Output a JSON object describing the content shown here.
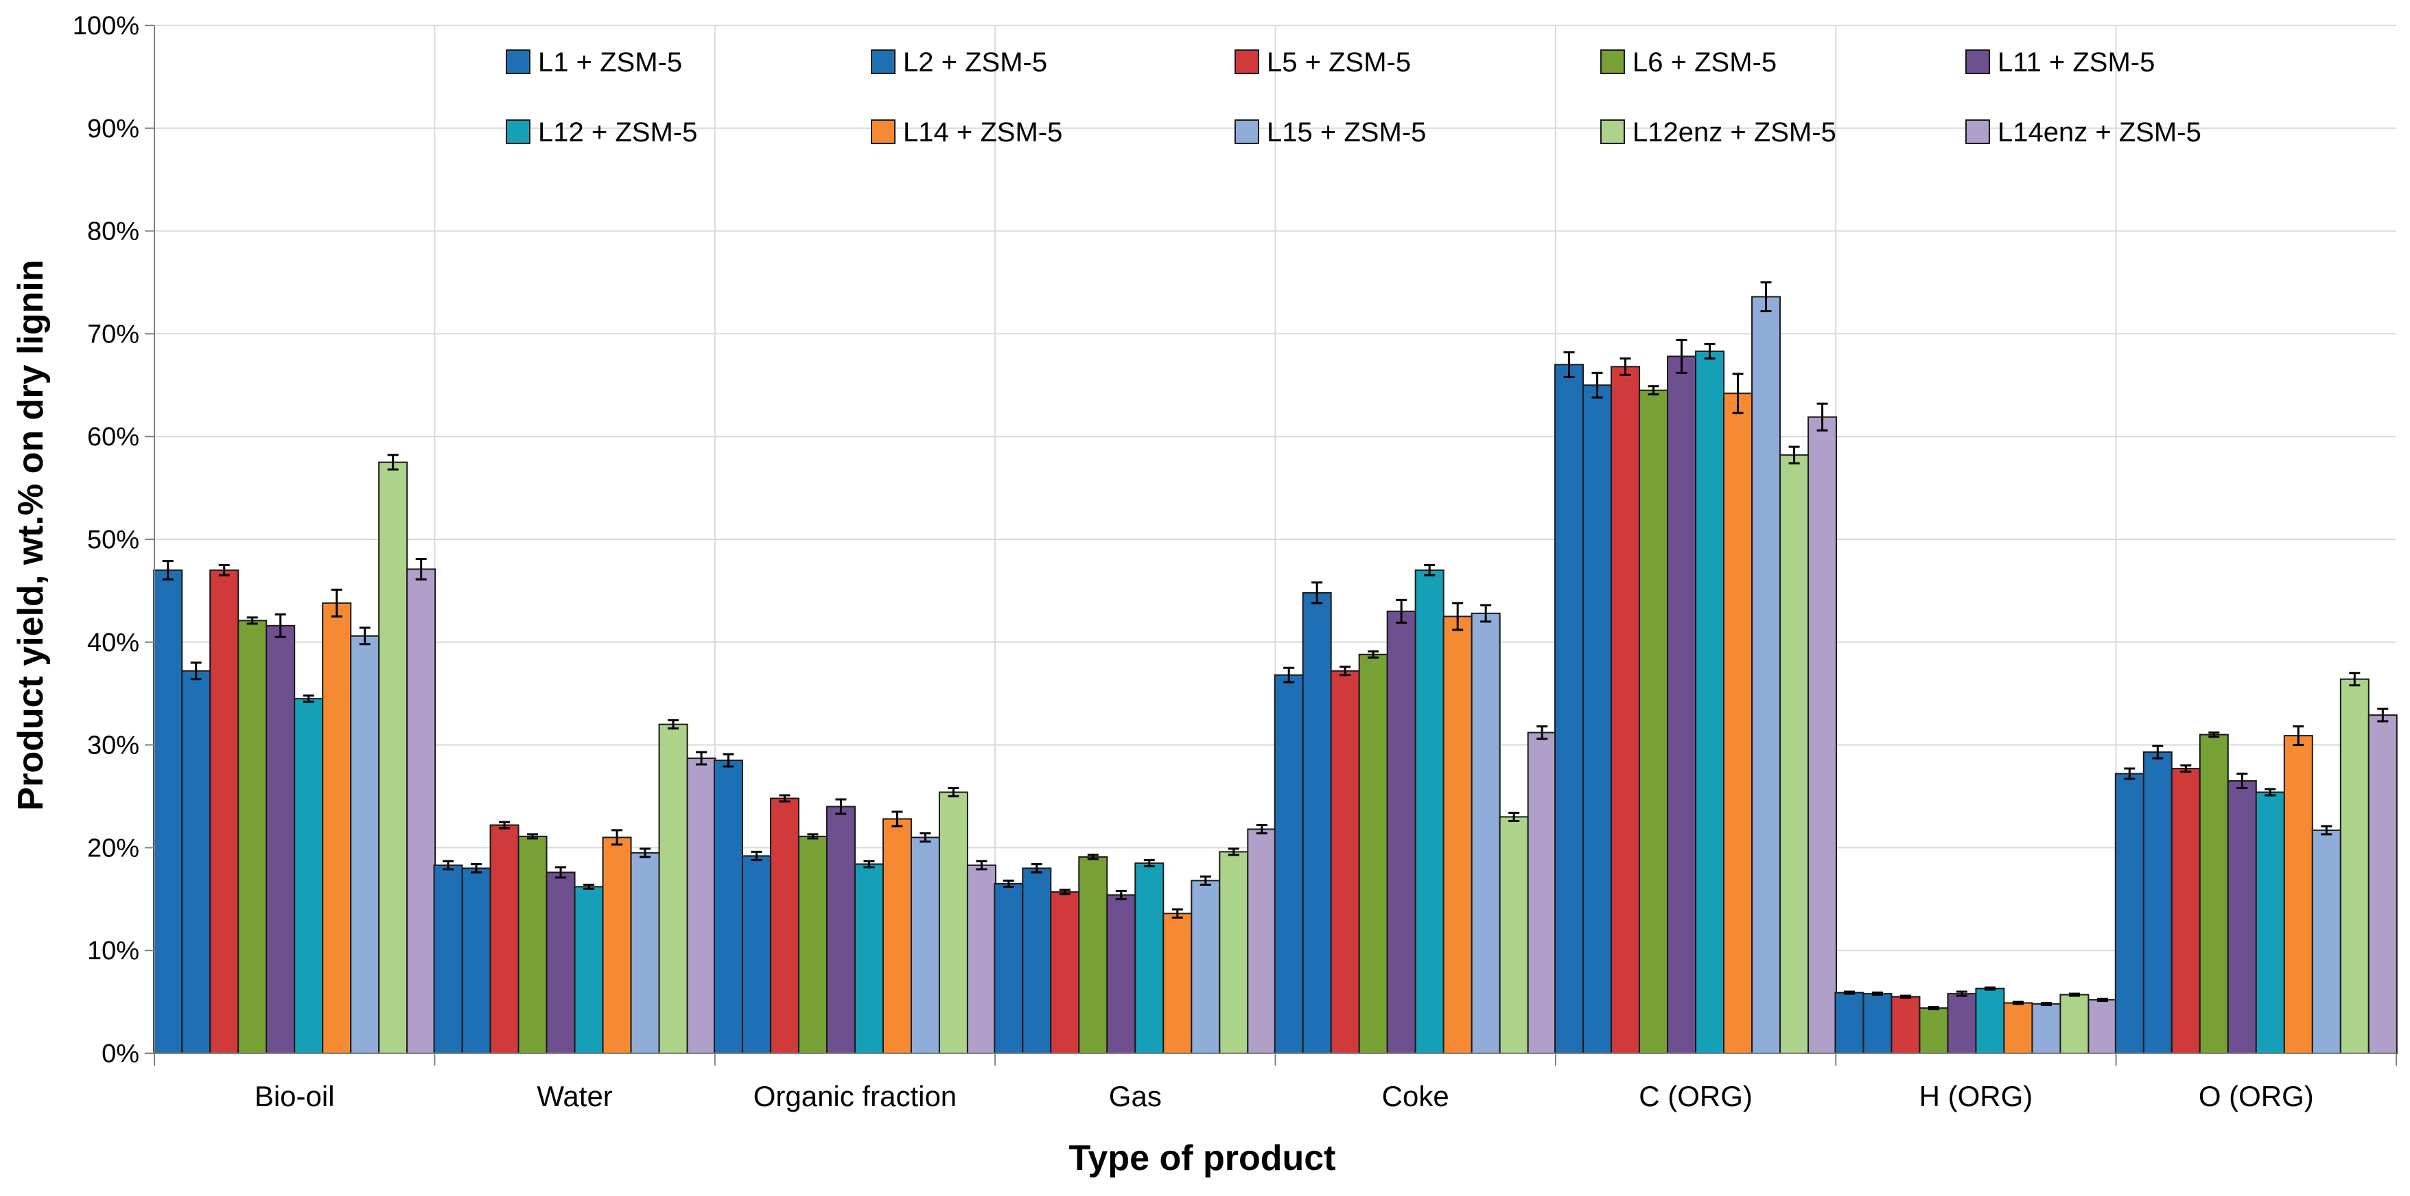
{
  "chart_data": {
    "type": "bar",
    "title": "",
    "xlabel": "Type of product",
    "ylabel": "Product yield, wt.% on dry lignin",
    "ylim": [
      0,
      100
    ],
    "yticks": [
      "0%",
      "10%",
      "20%",
      "30%",
      "40%",
      "50%",
      "60%",
      "70%",
      "80%",
      "90%",
      "100%"
    ],
    "grid": true,
    "legend_position": "top",
    "categories": [
      "Bio-oil",
      "Water",
      "Organic fraction",
      "Gas",
      "Coke",
      "C (ORG)",
      "H (ORG)",
      "O (ORG)"
    ],
    "series": [
      {
        "name": "L1 + ZSM-5",
        "color": "#1F6FB4",
        "values": [
          47.0,
          18.3,
          28.5,
          16.5,
          36.8,
          67.0,
          5.9,
          27.2
        ],
        "errors": [
          0.9,
          0.4,
          0.6,
          0.3,
          0.7,
          1.2,
          0.1,
          0.5
        ]
      },
      {
        "name": "L2 + ZSM-5",
        "color": "#1F6FB4",
        "values": [
          37.2,
          18.0,
          19.2,
          18.0,
          44.8,
          65.0,
          5.8,
          29.3
        ],
        "errors": [
          0.8,
          0.4,
          0.4,
          0.4,
          1.0,
          1.2,
          0.1,
          0.6
        ]
      },
      {
        "name": "L5 + ZSM-5",
        "color": "#D03A3A",
        "values": [
          47.0,
          22.2,
          24.8,
          15.7,
          37.2,
          66.8,
          5.5,
          27.7
        ],
        "errors": [
          0.5,
          0.3,
          0.3,
          0.2,
          0.4,
          0.8,
          0.1,
          0.3
        ]
      },
      {
        "name": "L6 + ZSM-5",
        "color": "#77A035",
        "values": [
          42.1,
          21.1,
          21.1,
          19.1,
          38.8,
          64.5,
          4.4,
          31.0
        ],
        "errors": [
          0.3,
          0.2,
          0.2,
          0.2,
          0.3,
          0.4,
          0.1,
          0.2
        ]
      },
      {
        "name": "L11 + ZSM-5",
        "color": "#6E4F8F",
        "values": [
          41.6,
          17.6,
          24.0,
          15.4,
          43.0,
          67.8,
          5.8,
          26.5
        ],
        "errors": [
          1.1,
          0.5,
          0.7,
          0.4,
          1.1,
          1.6,
          0.2,
          0.7
        ]
      },
      {
        "name": "L12 + ZSM-5",
        "color": "#15A0B8",
        "values": [
          34.5,
          16.2,
          18.4,
          18.5,
          47.0,
          68.3,
          6.3,
          25.4
        ],
        "errors": [
          0.3,
          0.2,
          0.3,
          0.3,
          0.5,
          0.7,
          0.1,
          0.3
        ]
      },
      {
        "name": "L14 + ZSM-5",
        "color": "#F58A33",
        "values": [
          43.8,
          21.0,
          22.8,
          13.6,
          42.5,
          64.2,
          4.9,
          30.9
        ],
        "errors": [
          1.3,
          0.7,
          0.7,
          0.4,
          1.3,
          1.9,
          0.1,
          0.9
        ]
      },
      {
        "name": "L15 + ZSM-5",
        "color": "#8FADD8",
        "values": [
          40.6,
          19.5,
          21.0,
          16.8,
          42.8,
          73.6,
          4.8,
          21.7
        ],
        "errors": [
          0.8,
          0.4,
          0.4,
          0.4,
          0.8,
          1.4,
          0.1,
          0.4
        ]
      },
      {
        "name": "L12enz + ZSM-5",
        "color": "#ADD38A",
        "values": [
          57.5,
          32.0,
          25.4,
          19.6,
          23.0,
          58.2,
          5.7,
          36.4
        ],
        "errors": [
          0.7,
          0.4,
          0.4,
          0.3,
          0.4,
          0.8,
          0.1,
          0.6
        ]
      },
      {
        "name": "L14enz + ZSM-5",
        "color": "#B09FC9",
        "values": [
          47.1,
          28.7,
          18.3,
          21.8,
          31.2,
          61.9,
          5.2,
          32.9
        ],
        "errors": [
          1.0,
          0.6,
          0.4,
          0.4,
          0.6,
          1.3,
          0.1,
          0.6
        ]
      }
    ]
  }
}
